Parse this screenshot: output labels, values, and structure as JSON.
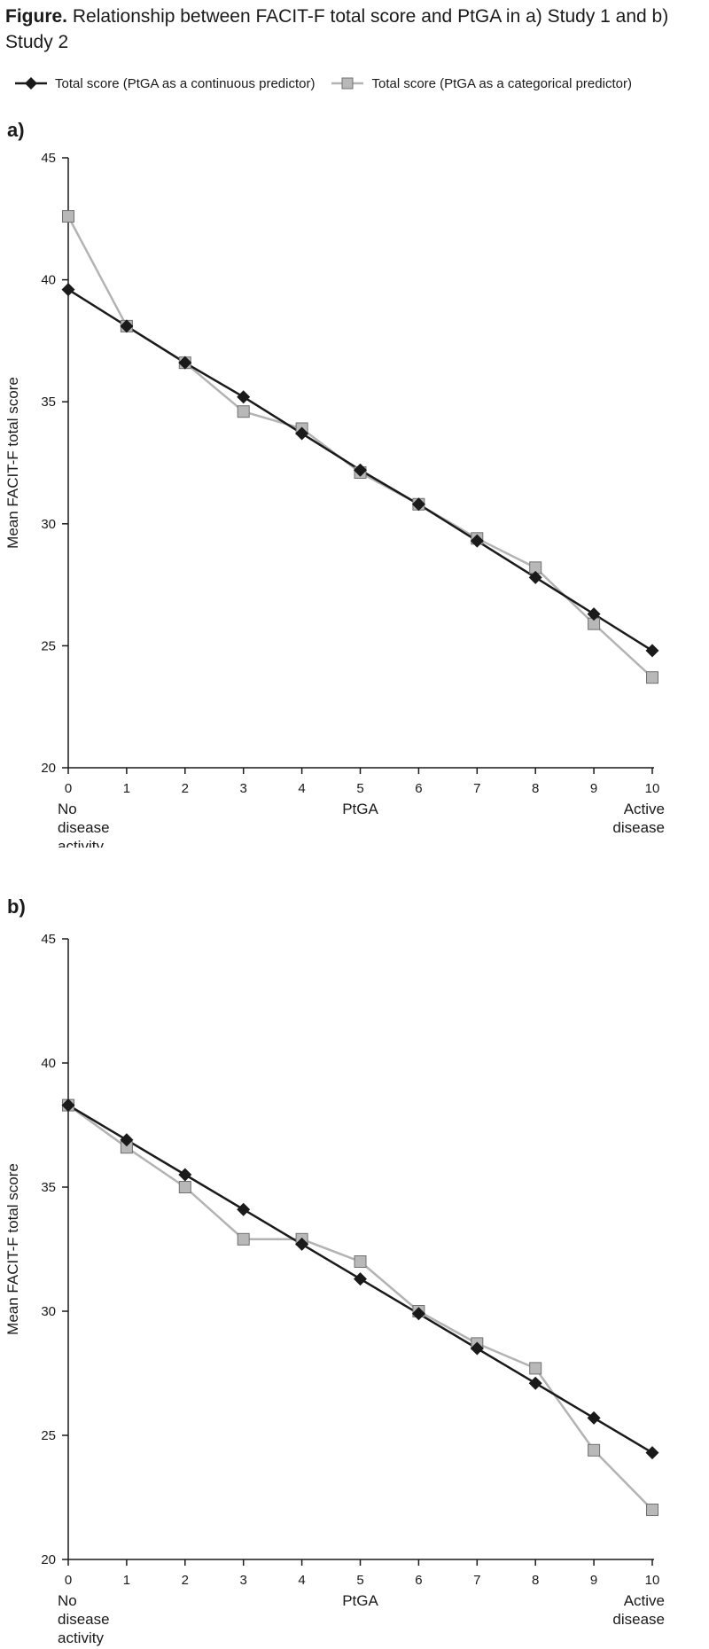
{
  "figure": {
    "title_bold": "Figure.",
    "title_rest": " Relationship between FACIT-F total score and PtGA in a) Study 1 and b) Study 2"
  },
  "legend": {
    "items": [
      {
        "label": "Total score (PtGA as a continuous predictor)",
        "marker": "diamond",
        "color": "#1a1a1a"
      },
      {
        "label": "Total score (PtGA as a categorical predictor)",
        "marker": "square",
        "color": "#b3b3b3"
      }
    ]
  },
  "chart_data": [
    {
      "type": "line",
      "panel_label": "a)",
      "xlabel": "PtGA",
      "ylabel": "Mean FACIT-F total score",
      "x": [
        0,
        1,
        2,
        3,
        4,
        5,
        6,
        7,
        8,
        9,
        10
      ],
      "x_extra_labels": {
        "0": [
          "No",
          "disease",
          "activity"
        ],
        "10": [
          "Active",
          "disease"
        ]
      },
      "ylim": [
        20,
        45
      ],
      "yticks": [
        20,
        25,
        30,
        35,
        40,
        45
      ],
      "grid": false,
      "series": [
        {
          "name": "Total score (PtGA as a continuous predictor)",
          "marker": "diamond",
          "color": "#1a1a1a",
          "values": [
            39.6,
            38.1,
            36.6,
            35.2,
            33.7,
            32.2,
            30.8,
            29.3,
            27.8,
            26.3,
            24.8
          ]
        },
        {
          "name": "Total score (PtGA as a categorical predictor)",
          "marker": "square",
          "color": "#b3b3b3",
          "values": [
            42.6,
            38.1,
            36.6,
            34.6,
            33.9,
            32.1,
            30.8,
            29.4,
            28.2,
            25.9,
            23.7
          ]
        }
      ]
    },
    {
      "type": "line",
      "panel_label": "b)",
      "xlabel": "PtGA",
      "ylabel": "Mean FACIT-F total score",
      "x": [
        0,
        1,
        2,
        3,
        4,
        5,
        6,
        7,
        8,
        9,
        10
      ],
      "x_extra_labels": {
        "0": [
          "No",
          "disease",
          "activity"
        ],
        "10": [
          "Active",
          "disease"
        ]
      },
      "ylim": [
        20,
        45
      ],
      "yticks": [
        20,
        25,
        30,
        35,
        40,
        45
      ],
      "grid": false,
      "series": [
        {
          "name": "Total score (PtGA as a continuous predictor)",
          "marker": "diamond",
          "color": "#1a1a1a",
          "values": [
            38.3,
            36.9,
            35.5,
            34.1,
            32.7,
            31.3,
            29.9,
            28.5,
            27.1,
            25.7,
            24.3
          ]
        },
        {
          "name": "Total score (PtGA as a categorical predictor)",
          "marker": "square",
          "color": "#b3b3b3",
          "values": [
            38.3,
            36.6,
            35.0,
            32.9,
            32.9,
            32.0,
            30.0,
            28.7,
            27.7,
            24.4,
            22.0
          ]
        }
      ]
    }
  ]
}
